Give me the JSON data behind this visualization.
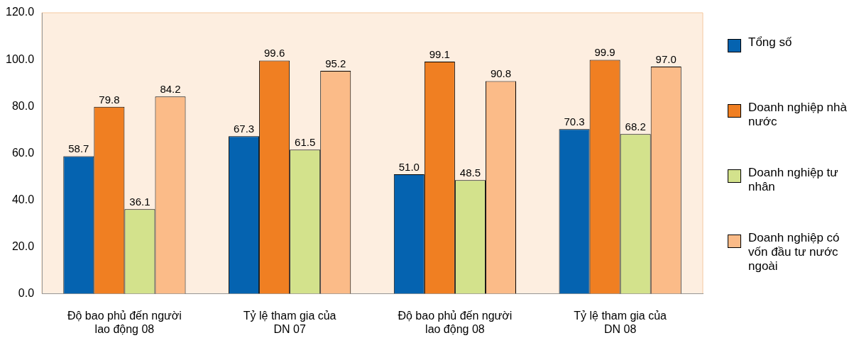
{
  "chart_data": {
    "type": "bar",
    "categories": [
      "Độ bao phủ đến người lao động 08",
      "Tỷ lệ tham gia của DN 07",
      "Độ bao phủ đến người lao động 08",
      "Tỷ lệ tham gia của DN 08"
    ],
    "series": [
      {
        "name": "Tổng số",
        "color": "#0563b0",
        "values": [
          58.7,
          67.3,
          51.0,
          70.3
        ],
        "value_labels": [
          "58.7",
          "67.3",
          "51.0",
          "70.3"
        ]
      },
      {
        "name": "Doanh nghiệp nhà nước",
        "color": "#f07f22",
        "values": [
          79.8,
          99.6,
          99.1,
          99.9
        ],
        "value_labels": [
          "79.8",
          "99.6",
          "99.1",
          "99.9"
        ]
      },
      {
        "name": "Doanh nghiệp tư nhân",
        "color": "#d3e28c",
        "values": [
          36.1,
          61.5,
          48.5,
          68.2
        ],
        "value_labels": [
          "36.1",
          "61.5",
          "48.5",
          "68.2"
        ]
      },
      {
        "name": "Doanh nghiệp có vốn đầu tư nước ngoài",
        "color": "#fbbb88",
        "values": [
          84.2,
          95.2,
          90.8,
          97.0
        ],
        "value_labels": [
          "84.2",
          "95.2",
          "90.8",
          "97.0"
        ]
      }
    ],
    "ylim": [
      0,
      120
    ],
    "yticks": [
      {
        "value": 0,
        "label": "0.0"
      },
      {
        "value": 20,
        "label": "20.0"
      },
      {
        "value": 40,
        "label": "40.0"
      },
      {
        "value": 60,
        "label": "60.0"
      },
      {
        "value": 80,
        "label": "80.0"
      },
      {
        "value": 100,
        "label": "100.0"
      },
      {
        "value": 120,
        "label": "120.0"
      }
    ],
    "grid": false,
    "legend": "right"
  }
}
